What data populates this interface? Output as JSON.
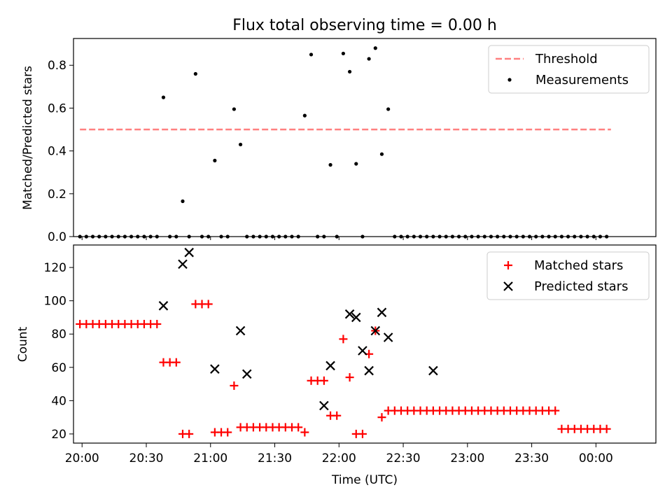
{
  "chart_data": [
    {
      "type": "scatter",
      "title": "Flux total observing time = 0.00 h",
      "xlabel": "",
      "ylabel": "Matched/Predicted stars",
      "xlim": [
        "19:56",
        "00:28"
      ],
      "ylim": [
        0,
        0.925
      ],
      "yticks": [
        0.0,
        0.2,
        0.4,
        0.6,
        0.8
      ],
      "yticklabels": [
        "0.0",
        "0.2",
        "0.4",
        "0.6",
        "0.8"
      ],
      "grid": false,
      "legend": "top-right",
      "series": [
        {
          "name": "Threshold",
          "kind": "line",
          "style": "dashed",
          "color": "#ff8080",
          "x": [
            "19:59",
            "00:07"
          ],
          "y": [
            0.5,
            0.5
          ]
        },
        {
          "name": "Measurements",
          "kind": "scatter",
          "marker": "dot",
          "color": "#000000",
          "x": [
            "19:59",
            "20:02",
            "20:05",
            "20:08",
            "20:11",
            "20:14",
            "20:17",
            "20:20",
            "20:23",
            "20:26",
            "20:29",
            "20:32",
            "20:35",
            "20:38",
            "20:41",
            "20:44",
            "20:47",
            "20:50",
            "20:53",
            "20:56",
            "20:59",
            "21:02",
            "21:05",
            "21:08",
            "21:11",
            "21:14",
            "21:17",
            "21:20",
            "21:23",
            "21:26",
            "21:29",
            "21:32",
            "21:35",
            "21:38",
            "21:41",
            "21:44",
            "21:47",
            "21:50",
            "21:53",
            "21:56",
            "21:59",
            "22:02",
            "22:05",
            "22:08",
            "22:11",
            "22:14",
            "22:17",
            "22:20",
            "22:23",
            "22:26",
            "22:29",
            "22:32",
            "22:35",
            "22:38",
            "22:41",
            "22:44",
            "22:47",
            "22:50",
            "22:53",
            "22:56",
            "22:59",
            "23:02",
            "23:05",
            "23:08",
            "23:11",
            "23:14",
            "23:17",
            "23:20",
            "23:23",
            "23:26",
            "23:29",
            "23:32",
            "23:35",
            "23:38",
            "23:41",
            "23:44",
            "23:47",
            "23:50",
            "23:53",
            "23:56",
            "23:59",
            "00:02",
            "00:05"
          ],
          "y": [
            0,
            0,
            0,
            0,
            0,
            0,
            0,
            0,
            0,
            0,
            0,
            0,
            0,
            0.65,
            0,
            0,
            0.165,
            0,
            0.76,
            0,
            0,
            0.355,
            0,
            0,
            0.595,
            0.43,
            0,
            0,
            0,
            0,
            0,
            0,
            0,
            0,
            0,
            0.565,
            0.85,
            0,
            0,
            0.335,
            0,
            0.855,
            0.77,
            0.34,
            0,
            0.83,
            0.88,
            0.385,
            0.595,
            0,
            0,
            0,
            0,
            0,
            0,
            0,
            0,
            0,
            0,
            0,
            0,
            0,
            0,
            0,
            0,
            0,
            0,
            0,
            0,
            0,
            0,
            0,
            0,
            0,
            0,
            0,
            0,
            0,
            0,
            0,
            0,
            0,
            0
          ]
        }
      ]
    },
    {
      "type": "scatter",
      "title": "",
      "xlabel": "Time (UTC)",
      "ylabel": "Count",
      "xlim": [
        "19:56",
        "00:28"
      ],
      "ylim": [
        14.5,
        133.5
      ],
      "yticks": [
        20,
        40,
        60,
        80,
        100,
        120
      ],
      "yticklabels": [
        "20",
        "40",
        "60",
        "80",
        "100",
        "120"
      ],
      "xticks": [
        "20:00",
        "20:30",
        "21:00",
        "21:30",
        "22:00",
        "22:30",
        "23:00",
        "23:30",
        "00:00"
      ],
      "xticklabels": [
        "20:00",
        "20:30",
        "21:00",
        "21:30",
        "22:00",
        "22:30",
        "23:00",
        "23:30",
        "00:00"
      ],
      "grid": false,
      "legend": "top-right",
      "series": [
        {
          "name": "Matched stars",
          "kind": "scatter",
          "marker": "plus",
          "color": "#ff0000",
          "x": [
            "19:59",
            "20:02",
            "20:05",
            "20:08",
            "20:11",
            "20:14",
            "20:17",
            "20:20",
            "20:23",
            "20:26",
            "20:29",
            "20:32",
            "20:35",
            "20:38",
            "20:41",
            "20:44",
            "20:47",
            "20:50",
            "20:53",
            "20:56",
            "20:59",
            "21:02",
            "21:05",
            "21:08",
            "21:11",
            "21:14",
            "21:17",
            "21:20",
            "21:23",
            "21:26",
            "21:29",
            "21:32",
            "21:35",
            "21:38",
            "21:41",
            "21:44",
            "21:47",
            "21:50",
            "21:53",
            "21:56",
            "21:59",
            "22:02",
            "22:05",
            "22:08",
            "22:11",
            "22:14",
            "22:17",
            "22:20",
            "22:23",
            "22:26",
            "22:29",
            "22:32",
            "22:35",
            "22:38",
            "22:41",
            "22:44",
            "22:47",
            "22:50",
            "22:53",
            "22:56",
            "22:59",
            "23:02",
            "23:05",
            "23:08",
            "23:11",
            "23:14",
            "23:17",
            "23:20",
            "23:23",
            "23:26",
            "23:29",
            "23:32",
            "23:35",
            "23:38",
            "23:41",
            "23:44",
            "23:47",
            "23:50",
            "23:53",
            "23:56",
            "23:59",
            "00:02",
            "00:05"
          ],
          "y": [
            86,
            86,
            86,
            86,
            86,
            86,
            86,
            86,
            86,
            86,
            86,
            86,
            86,
            63,
            63,
            63,
            20,
            20,
            98,
            98,
            98,
            21,
            21,
            21,
            49,
            24,
            24,
            24,
            24,
            24,
            24,
            24,
            24,
            24,
            24,
            21,
            52,
            52,
            52,
            31,
            31,
            77,
            54,
            20,
            20,
            68,
            82,
            30,
            34,
            34,
            34,
            34,
            34,
            34,
            34,
            34,
            34,
            34,
            34,
            34,
            34,
            34,
            34,
            34,
            34,
            34,
            34,
            34,
            34,
            34,
            34,
            34,
            34,
            34,
            34,
            23,
            23,
            23,
            23,
            23,
            23,
            23,
            23
          ]
        },
        {
          "name": "Predicted stars",
          "kind": "scatter",
          "marker": "x",
          "color": "#000000",
          "x": [
            "20:38",
            "20:47",
            "20:50",
            "21:02",
            "21:14",
            "21:17",
            "21:53",
            "21:56",
            "22:05",
            "22:08",
            "22:11",
            "22:14",
            "22:17",
            "22:20",
            "22:23",
            "22:44"
          ],
          "y": [
            97,
            122,
            129,
            59,
            82,
            56,
            37,
            61,
            92,
            90,
            70,
            58,
            82,
            93,
            78,
            58
          ]
        }
      ]
    }
  ]
}
